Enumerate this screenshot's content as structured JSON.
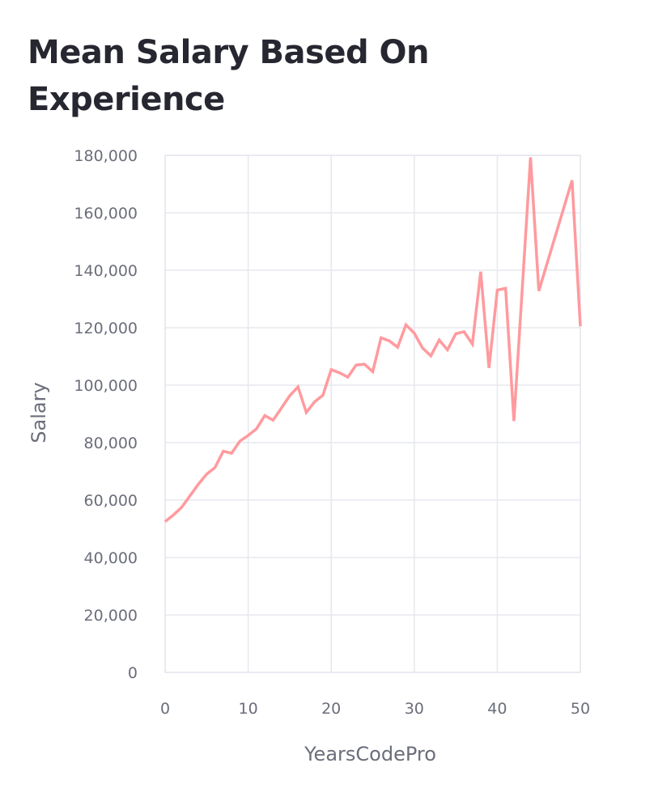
{
  "page": {
    "title": "Mean Salary Based On Experience"
  },
  "chart_data": {
    "type": "line",
    "title": "Mean Salary Based On Experience",
    "xlabel": "YearsCodePro",
    "ylabel": "Salary",
    "xlim": [
      0,
      50
    ],
    "ylim": [
      0,
      180000
    ],
    "x_ticks": [
      0,
      10,
      20,
      30,
      40,
      50
    ],
    "y_ticks": [
      0,
      20000,
      40000,
      60000,
      80000,
      100000,
      120000,
      140000,
      160000,
      180000
    ],
    "x_tick_labels": [
      "0",
      "10",
      "20",
      "30",
      "40",
      "50"
    ],
    "y_tick_labels": [
      "0",
      "20,000",
      "40,000",
      "60,000",
      "80,000",
      "100,000",
      "120,000",
      "140,000",
      "160,000",
      "180,000"
    ],
    "grid": true,
    "line_color": "#ff9a9e",
    "series": [
      {
        "x": [
          0,
          1,
          2,
          3,
          4,
          5,
          6,
          7,
          8,
          9,
          10,
          11,
          12,
          13,
          14,
          15,
          16,
          17,
          18,
          19,
          20,
          21,
          22,
          23,
          24,
          25,
          26,
          27,
          28,
          29,
          30,
          31,
          32,
          33,
          34,
          35,
          36,
          37,
          38,
          39,
          40,
          41,
          42,
          44,
          45,
          49,
          50
        ],
        "values": [
          52500,
          54800,
          57500,
          61500,
          65500,
          69000,
          71300,
          77000,
          76300,
          80500,
          82500,
          84800,
          89400,
          87800,
          92000,
          96300,
          99400,
          90500,
          94200,
          96500,
          105400,
          104300,
          102800,
          107000,
          107300,
          104700,
          116500,
          115400,
          113200,
          121000,
          118100,
          112900,
          110200,
          115700,
          112300,
          117900,
          118600,
          114300,
          139500,
          106000,
          133100,
          133700,
          87500,
          179300,
          132800,
          171300,
          120500
        ]
      }
    ]
  }
}
